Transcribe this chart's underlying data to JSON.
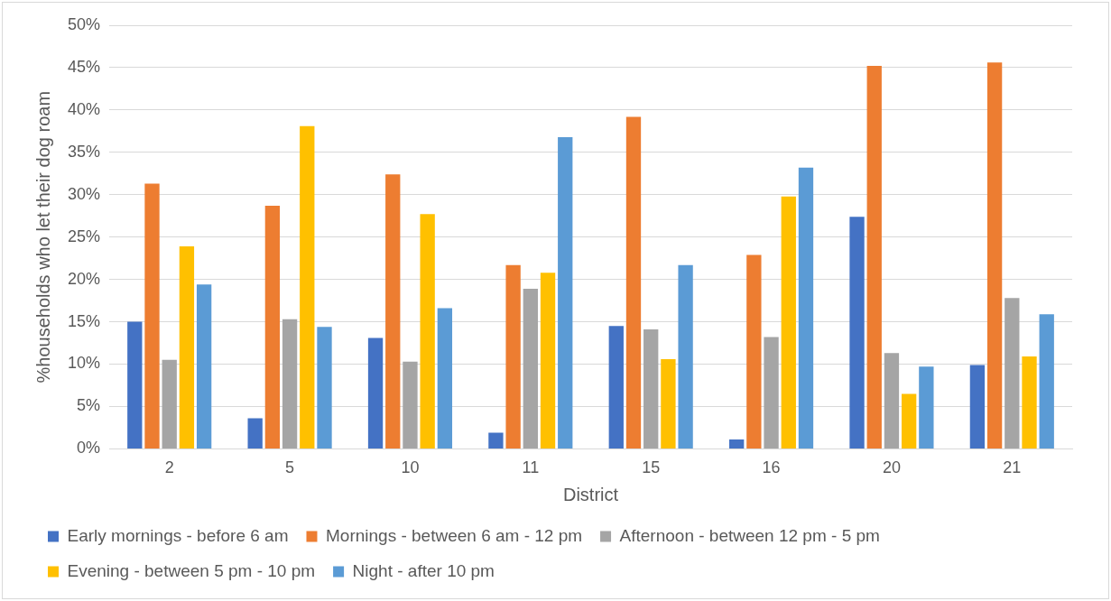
{
  "chart_data": {
    "type": "bar",
    "xlabel": "District",
    "ylabel": "%households who let their dog roam",
    "categories": [
      "2",
      "5",
      "10",
      "11",
      "15",
      "16",
      "20",
      "21"
    ],
    "series": [
      {
        "name": "Early mornings - before 6 am",
        "color": "#4472c4",
        "values": [
          15.0,
          3.6,
          13.1,
          1.9,
          14.5,
          1.1,
          27.4,
          9.9
        ]
      },
      {
        "name": "Mornings - between 6 am - 12 pm",
        "color": "#ed7d31",
        "values": [
          31.3,
          28.7,
          32.4,
          21.7,
          39.2,
          22.9,
          45.2,
          45.6
        ]
      },
      {
        "name": "Afternoon - between 12 pm - 5 pm",
        "color": "#a5a5a5",
        "values": [
          10.5,
          15.3,
          10.3,
          18.9,
          14.1,
          13.2,
          11.3,
          17.8
        ]
      },
      {
        "name": "Evening - between 5 pm - 10 pm",
        "color": "#ffc000",
        "values": [
          23.9,
          38.1,
          27.7,
          20.8,
          10.6,
          29.8,
          6.5,
          10.9
        ]
      },
      {
        "name": "Night - after 10 pm",
        "color": "#5b9bd5",
        "values": [
          19.4,
          14.4,
          16.6,
          36.8,
          21.7,
          33.2,
          9.7,
          15.9
        ]
      }
    ],
    "ylim": [
      0,
      50
    ],
    "yticks": [
      {
        "value": 0,
        "label": "0%"
      },
      {
        "value": 5,
        "label": "5%"
      },
      {
        "value": 10,
        "label": "10%"
      },
      {
        "value": 15,
        "label": "15%"
      },
      {
        "value": 20,
        "label": "20%"
      },
      {
        "value": 25,
        "label": "25%"
      },
      {
        "value": 30,
        "label": "30%"
      },
      {
        "value": 35,
        "label": "35%"
      },
      {
        "value": 40,
        "label": "40%"
      },
      {
        "value": 45,
        "label": "45%"
      },
      {
        "value": 50,
        "label": "50%"
      }
    ],
    "grid": "y",
    "legend": "bottom"
  }
}
